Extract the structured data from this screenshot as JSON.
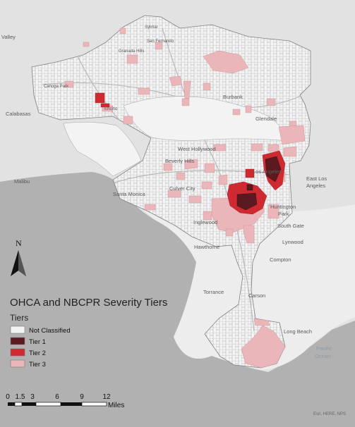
{
  "map": {
    "colors": {
      "land": "#e2e2e2",
      "water": "#b1b1b1",
      "city": "#f7f7f7",
      "boundary": "#9a9a9a",
      "not_classified": "#f3f3f3",
      "tier1": "#5b1a1f",
      "tier2": "#cf2a32",
      "tier3": "#ebb6ba"
    },
    "places": {
      "valley": "Valley",
      "sylmar": "Sylmar",
      "san_fernando": "San Fernando",
      "granada_hills": "Granada Hills",
      "canoga_park": "Canoga Park",
      "calabasas": "Calabasas",
      "encino": "Encino",
      "burbank": "Burbank",
      "glendale": "Glendale",
      "west_hollywood": "West Hollywood",
      "beverly_hills": "Beverly Hills",
      "los_angeles": "Los Angeles",
      "east_los_angeles_1": "East Los",
      "east_los_angeles_2": "Angeles",
      "malibu": "Malibu",
      "santa_monica": "Santa Monica",
      "culver_city": "Culver City",
      "huntington_park_1": "Huntington",
      "huntington_park_2": "Park",
      "inglewood": "Inglewood",
      "south_gate": "South Gate",
      "hawthorne": "Hawthorne",
      "lynwood": "Lynwood",
      "compton": "Compton",
      "torrance": "Torrance",
      "carson": "Carson",
      "long_beach": "Long Beach",
      "pacific_ocean_1": "Pacific",
      "pacific_ocean_2": "Ocean"
    },
    "north_arrow_label": "N",
    "credit": "Esri, HERE, NPS"
  },
  "legend": {
    "title": "OHCA and NBCPR Severity Tiers",
    "subtitle": "Tiers",
    "items": [
      {
        "label": "Not Classified",
        "color": "#f3f3f3"
      },
      {
        "label": "Tier 1",
        "color": "#5b1a1f"
      },
      {
        "label": "Tier 2",
        "color": "#cf2a32"
      },
      {
        "label": "Tier 3",
        "color": "#ebb6ba"
      }
    ]
  },
  "scale_bar": {
    "ticks": [
      "0",
      "1.5",
      "3",
      "6",
      "9",
      "12"
    ],
    "unit": "Miles"
  }
}
